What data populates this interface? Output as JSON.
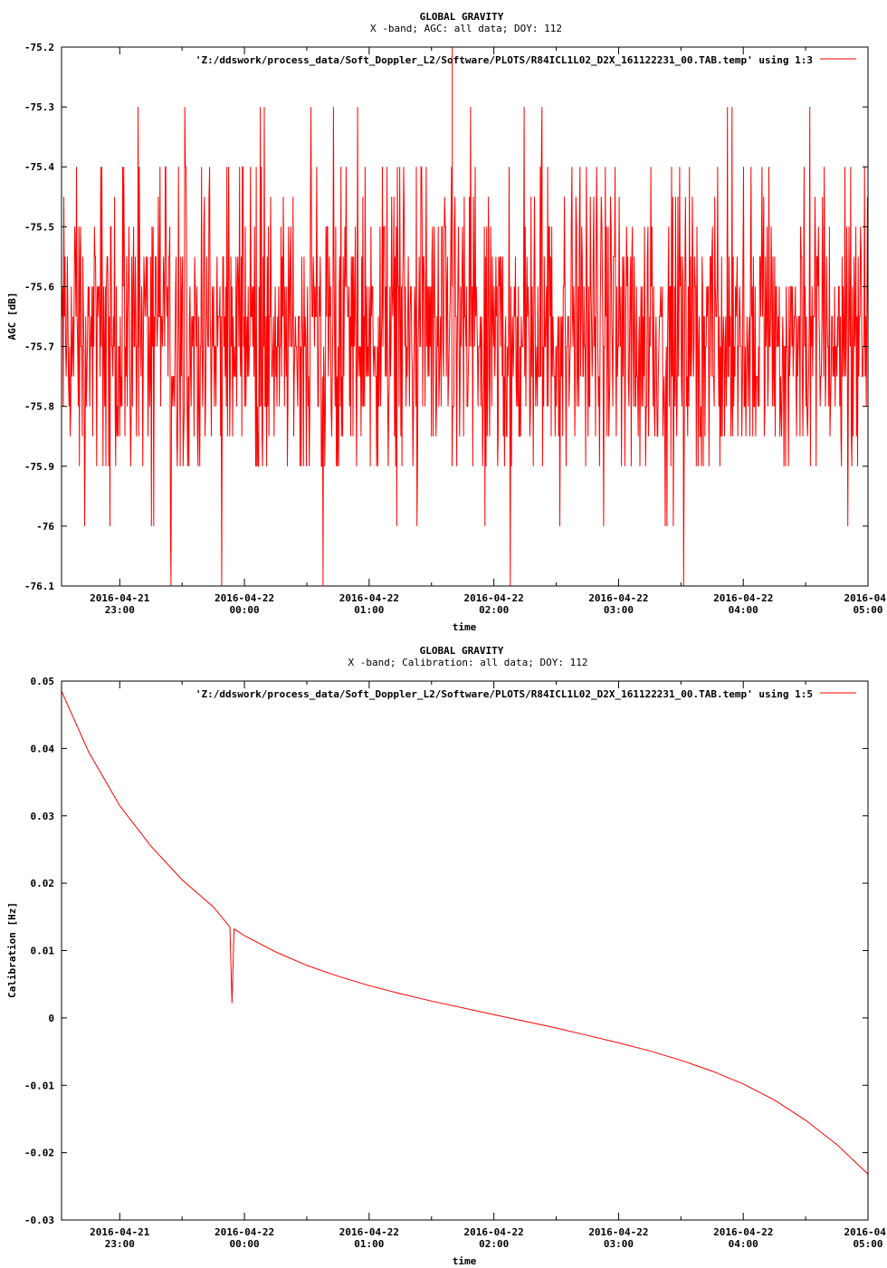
{
  "chart_data": [
    {
      "type": "line",
      "title": "GLOBAL GRAVITY",
      "subtitle": "X -band; AGC: all data; DOY: 112",
      "xlabel": "time",
      "ylabel": "AGC [dB]",
      "ylim": [
        -76.1,
        -75.2
      ],
      "xlim": [
        "2016-04-21 22:32",
        "2016-04-22 05:00"
      ],
      "grid": false,
      "legend_position": "top-right",
      "yticks": [
        "-75.2",
        "-75.3",
        "-75.4",
        "-75.5",
        "-75.6",
        "-75.7",
        "-75.8",
        "-75.9",
        "-76",
        "-76.1"
      ],
      "xticks": [
        {
          "date": "2016-04-21",
          "time": "23:00"
        },
        {
          "date": "2016-04-22",
          "time": "00:00"
        },
        {
          "date": "2016-04-22",
          "time": "01:00"
        },
        {
          "date": "2016-04-22",
          "time": "02:00"
        },
        {
          "date": "2016-04-22",
          "time": "03:00"
        },
        {
          "date": "2016-04-22",
          "time": "04:00"
        },
        {
          "date": "2016-04-",
          "time": "05:00"
        }
      ],
      "series": [
        {
          "name": "'Z:/ddswork/process_data/Soft_Doppler_L2/Software/PLOTS/R84ICL1L02_D2X_161122231_00.TAB.temp' using 1:3",
          "color": "#ff0000",
          "note_values": "noisy AGC signal fluctuating between -76.1 and -75.2 dB, mostly -75.8 to -75.5",
          "x": [
            "22:32",
            "22:45",
            "23:00",
            "23:15",
            "23:30",
            "23:45",
            "00:00",
            "00:15",
            "00:30",
            "00:45",
            "01:00",
            "01:15",
            "01:30",
            "01:45",
            "02:00",
            "02:15",
            "02:30",
            "02:45",
            "03:00",
            "03:15",
            "03:30",
            "03:45",
            "04:00",
            "04:15",
            "04:30",
            "04:45",
            "05:00"
          ],
          "values": [
            -75.7,
            -75.6,
            -75.7,
            -75.65,
            -75.7,
            -75.6,
            -75.65,
            -75.7,
            -75.6,
            -75.65,
            -75.7,
            -75.6,
            -75.65,
            -75.7,
            -75.65,
            -75.6,
            -75.7,
            -75.65,
            -75.6,
            -75.7,
            -75.65,
            -75.6,
            -75.7,
            -75.75,
            -75.7,
            -75.75,
            -75.7
          ]
        }
      ]
    },
    {
      "type": "line",
      "title": "GLOBAL GRAVITY",
      "subtitle": "X -band; Calibration: all data; DOY: 112",
      "xlabel": "time",
      "ylabel": "Calibration [Hz]",
      "ylim": [
        -0.03,
        0.05
      ],
      "xlim": [
        "2016-04-21 22:32",
        "2016-04-22 05:00"
      ],
      "grid": false,
      "legend_position": "top-right",
      "yticks": [
        "0.05",
        "0.04",
        "0.03",
        "0.02",
        "0.01",
        "0",
        "-0.01",
        "-0.02",
        "-0.03"
      ],
      "xticks": [
        {
          "date": "2016-04-21",
          "time": "23:00"
        },
        {
          "date": "2016-04-22",
          "time": "00:00"
        },
        {
          "date": "2016-04-22",
          "time": "01:00"
        },
        {
          "date": "2016-04-22",
          "time": "02:00"
        },
        {
          "date": "2016-04-22",
          "time": "03:00"
        },
        {
          "date": "2016-04-22",
          "time": "04:00"
        },
        {
          "date": "2016-04-",
          "time": "05:00"
        }
      ],
      "series": [
        {
          "name": "'Z:/ddswork/process_data/Soft_Doppler_L2/Software/PLOTS/R84ICL1L02_D2X_161122231_00.TAB.temp' using 1:5",
          "color": "#ff0000",
          "x": [
            "22:32",
            "22:45",
            "23:00",
            "23:15",
            "23:30",
            "23:45",
            "23:53",
            "23:54",
            "23:55",
            "00:00",
            "00:15",
            "00:30",
            "00:45",
            "01:00",
            "01:15",
            "01:30",
            "01:45",
            "02:00",
            "02:15",
            "02:30",
            "02:45",
            "03:00",
            "03:15",
            "03:30",
            "03:45",
            "04:00",
            "04:15",
            "04:30",
            "04:45",
            "05:00"
          ],
          "values": [
            0.0485,
            0.0395,
            0.0315,
            0.0255,
            0.0205,
            0.0165,
            0.0135,
            0.0022,
            0.0132,
            0.0122,
            0.0098,
            0.0078,
            0.0062,
            0.0048,
            0.0036,
            0.0025,
            0.0015,
            0.0005,
            -0.0005,
            -0.0015,
            -0.0026,
            -0.0037,
            -0.0049,
            -0.0063,
            -0.0079,
            -0.0098,
            -0.0122,
            -0.0152,
            -0.0188,
            -0.0232
          ]
        }
      ]
    }
  ]
}
